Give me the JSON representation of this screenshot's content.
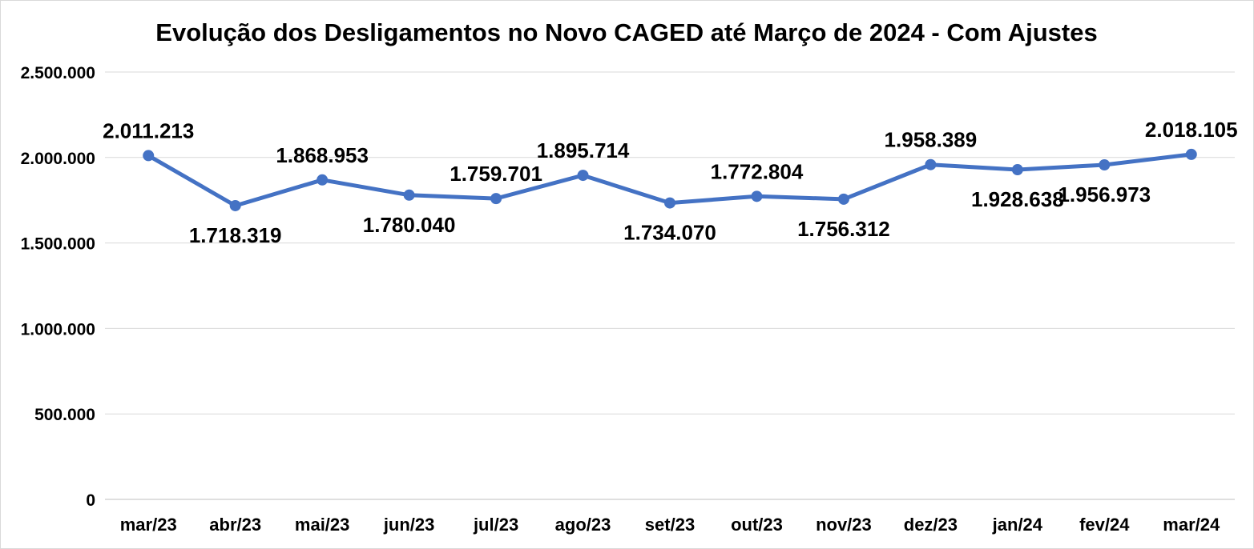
{
  "page": {
    "background_color": "#FFFFFF",
    "frame_border_color": "#D9D9D9"
  },
  "chart_data": {
    "type": "line",
    "title": "Evolução dos Desligamentos no Novo CAGED até Março de 2024 - Com Ajustes",
    "xlabel": "",
    "ylabel": "",
    "categories": [
      "mar/23",
      "abr/23",
      "mai/23",
      "jun/23",
      "jul/23",
      "ago/23",
      "set/23",
      "out/23",
      "nov/23",
      "dez/23",
      "jan/24",
      "fev/24",
      "mar/24"
    ],
    "values": [
      2011213,
      1718319,
      1868953,
      1780040,
      1759701,
      1895714,
      1734070,
      1772804,
      1756312,
      1958389,
      1928638,
      1956973,
      2018105
    ],
    "data_labels": [
      "2.011.213",
      "1.718.319",
      "1.868.953",
      "1.780.040",
      "1.759.701",
      "1.895.714",
      "1.734.070",
      "1.772.804",
      "1.756.312",
      "1.958.389",
      "1.928.638",
      "1.956.973",
      "2.018.105"
    ],
    "label_positions": [
      "above",
      "below",
      "above",
      "below",
      "above",
      "above",
      "below",
      "above",
      "below",
      "above",
      "below",
      "below",
      "above"
    ],
    "ylim": [
      0,
      2500000
    ],
    "ytick_interval": 500000,
    "ytick_labels": [
      "0",
      "500.000",
      "1.000.000",
      "1.500.000",
      "2.000.000",
      "2.500.000"
    ],
    "grid": true,
    "legend_position": "none",
    "line_color": "#4472C4",
    "marker_color": "#4472C4",
    "gridline_color": "#D9D9D9",
    "axis_line_color": "#BFBFBF",
    "text_color": "#000000"
  }
}
